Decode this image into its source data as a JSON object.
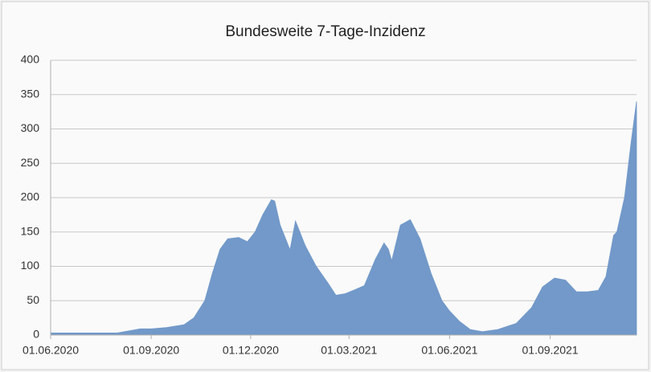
{
  "chart_data": {
    "type": "area",
    "title": "Bundesweite 7-Tage-Inzidenz",
    "color": "#7299c9",
    "grid": true,
    "x": [
      "2020-06-01",
      "2020-07-01",
      "2020-08-01",
      "2020-08-22",
      "2020-09-01",
      "2020-09-15",
      "2020-10-01",
      "2020-10-10",
      "2020-10-20",
      "2020-10-27",
      "2020-11-03",
      "2020-11-10",
      "2020-11-20",
      "2020-11-28",
      "2020-12-05",
      "2020-12-12",
      "2020-12-20",
      "2020-12-23",
      "2020-12-28",
      "2021-01-02",
      "2021-01-06",
      "2021-01-11",
      "2021-01-20",
      "2021-01-30",
      "2021-02-10",
      "2021-02-17",
      "2021-02-25",
      "2021-03-05",
      "2021-03-15",
      "2021-03-25",
      "2021-04-02",
      "2021-04-06",
      "2021-04-09",
      "2021-04-17",
      "2021-04-26",
      "2021-05-05",
      "2021-05-15",
      "2021-05-25",
      "2021-06-01",
      "2021-06-10",
      "2021-06-20",
      "2021-07-01",
      "2021-07-15",
      "2021-08-01",
      "2021-08-15",
      "2021-08-25",
      "2021-09-05",
      "2021-09-15",
      "2021-09-25",
      "2021-10-05",
      "2021-10-15",
      "2021-10-22",
      "2021-10-29",
      "2021-11-01",
      "2021-11-08",
      "2021-11-14",
      "2021-11-19"
    ],
    "values": [
      3,
      3,
      3,
      9,
      9,
      11,
      15,
      25,
      50,
      90,
      125,
      140,
      142,
      136,
      150,
      175,
      197,
      195,
      160,
      140,
      124,
      166,
      130,
      100,
      75,
      58,
      60,
      65,
      72,
      110,
      134,
      125,
      108,
      160,
      168,
      140,
      90,
      50,
      35,
      20,
      8,
      5,
      8,
      17,
      40,
      70,
      83,
      80,
      63,
      63,
      65,
      85,
      145,
      150,
      200,
      280,
      340
    ],
    "xlim": [
      "2020-06-01",
      "2021-11-19"
    ],
    "xticks": [
      {
        "value": "2020-06-01",
        "label": "01.06.2020"
      },
      {
        "value": "2020-09-01",
        "label": "01.09.2020"
      },
      {
        "value": "2020-12-01",
        "label": "01.12.2020"
      },
      {
        "value": "2021-03-01",
        "label": "01.03.2021"
      },
      {
        "value": "2021-06-01",
        "label": "01.06.2021"
      },
      {
        "value": "2021-09-01",
        "label": "01.09.2021"
      }
    ],
    "ylim": [
      0,
      400
    ],
    "yticks": [
      0,
      50,
      100,
      150,
      200,
      250,
      300,
      350,
      400
    ]
  }
}
